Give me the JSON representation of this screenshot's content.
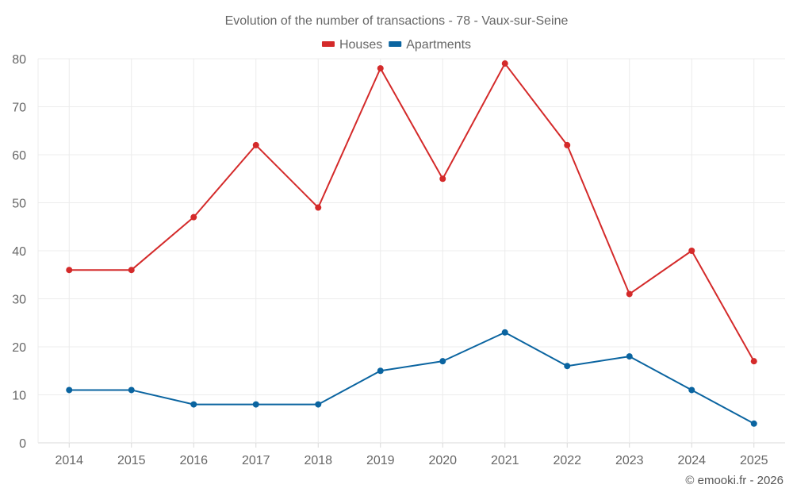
{
  "chart_data": {
    "type": "line",
    "title": "Evolution of the number of transactions - 78 - Vaux-sur-Seine",
    "categories": [
      "2014",
      "2015",
      "2016",
      "2017",
      "2018",
      "2019",
      "2020",
      "2021",
      "2022",
      "2023",
      "2024",
      "2025"
    ],
    "series": [
      {
        "name": "Houses",
        "color": "#d42a2a",
        "values": [
          36,
          36,
          47,
          62,
          49,
          78,
          55,
          79,
          62,
          31,
          40,
          17
        ]
      },
      {
        "name": "Apartments",
        "color": "#0a64a0",
        "values": [
          11,
          11,
          8,
          8,
          8,
          15,
          17,
          23,
          16,
          18,
          11,
          4
        ]
      }
    ],
    "ylim": [
      0,
      80
    ],
    "yticks": [
      0,
      10,
      20,
      30,
      40,
      50,
      60,
      70,
      80
    ],
    "xlabel": "",
    "ylabel": "",
    "grid": true,
    "legend_position": "top-center"
  },
  "credit": "© emooki.fr - 2026"
}
